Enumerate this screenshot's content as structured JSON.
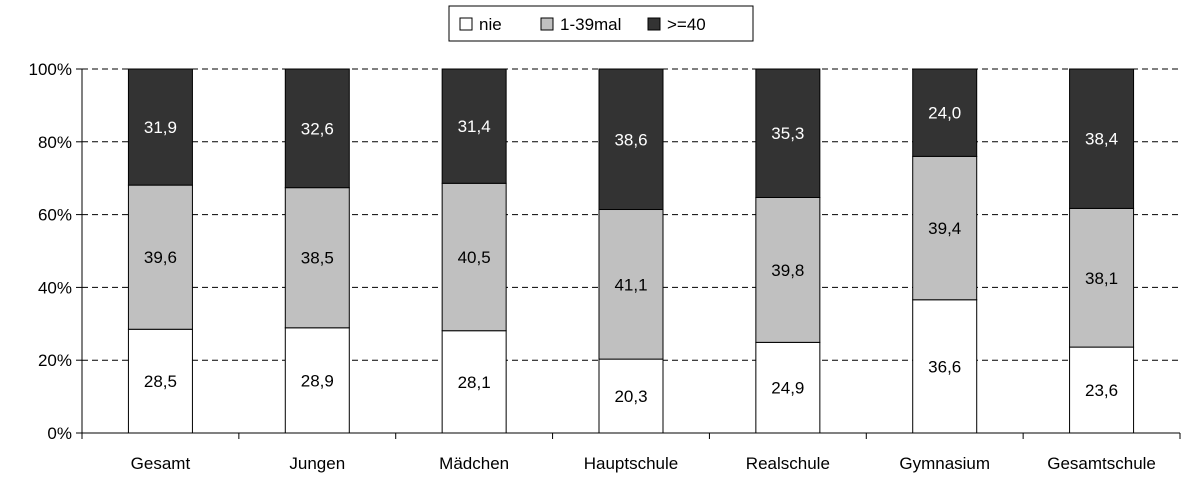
{
  "chart_data": {
    "type": "bar",
    "stacked": true,
    "categories": [
      "Gesamt",
      "Jungen",
      "Mädchen",
      "Hauptschule",
      "Realschule",
      "Gymnasium",
      "Gesamtschule"
    ],
    "series": [
      {
        "name": "nie",
        "values": [
          28.5,
          28.9,
          28.1,
          20.3,
          24.9,
          36.6,
          23.6
        ],
        "labels": [
          "28,5",
          "28,9",
          "28,1",
          "20,3",
          "24,9",
          "36,6",
          "23,6"
        ],
        "color": "#ffffff",
        "label_color": "#000000"
      },
      {
        "name": "1-39mal",
        "values": [
          39.6,
          38.5,
          40.5,
          41.1,
          39.8,
          39.4,
          38.1
        ],
        "labels": [
          "39,6",
          "38,5",
          "40,5",
          "41,1",
          "39,8",
          "39,4",
          "38,1"
        ],
        "color": "#c0c0c0",
        "label_color": "#000000"
      },
      {
        "name": ">=40",
        "values": [
          31.9,
          32.6,
          31.4,
          38.6,
          35.3,
          24.0,
          38.4
        ],
        "labels": [
          "31,9",
          "32,6",
          "31,4",
          "38,6",
          "35,3",
          "24,0",
          "38,4"
        ],
        "color": "#333333",
        "label_color": "#ffffff"
      }
    ],
    "y_ticks": [
      "0%",
      "20%",
      "40%",
      "60%",
      "80%",
      "100%"
    ],
    "ylim": [
      0,
      100
    ],
    "grid": "dashed-horizontal",
    "legend_position": "top-center"
  }
}
